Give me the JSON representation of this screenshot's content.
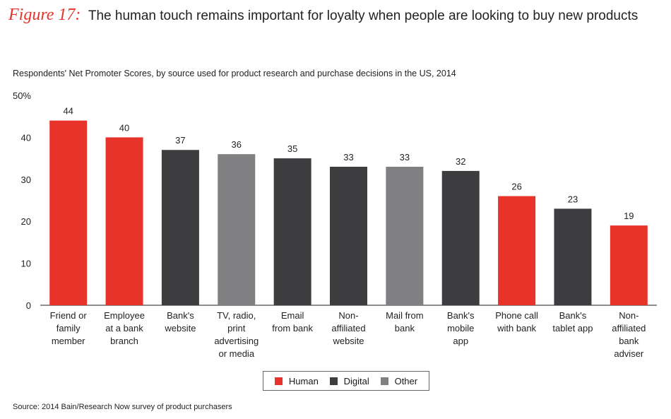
{
  "figure": {
    "label": "Figure 17:",
    "title": "The human touch remains important for loyalty when people are looking to buy new products"
  },
  "subtitle": "Respondents' Net Promoter Scores, by source used for product research and purchase decisions in the US, 2014",
  "source": "Source: 2014 Bain/Research Now survey of product purchasers",
  "colors": {
    "Human": "#e8332a",
    "Digital": "#3d3d3f",
    "Other": "#808082"
  },
  "legend": [
    {
      "label": "Human",
      "group": "Human"
    },
    {
      "label": "Digital",
      "group": "Digital"
    },
    {
      "label": "Other",
      "group": "Other"
    }
  ],
  "chart_data": {
    "type": "bar",
    "title": "Respondents' Net Promoter Scores, by source used for product research and purchase decisions in the US, 2014",
    "categories": [
      [
        "Friend or",
        "family",
        "member"
      ],
      [
        "Employee",
        "at a bank",
        "branch"
      ],
      [
        "Bank's",
        "website"
      ],
      [
        "TV, radio,",
        "print",
        "advertising",
        "or media"
      ],
      [
        "Email",
        "from bank"
      ],
      [
        "Non-",
        "affiliated",
        "website"
      ],
      [
        "Mail from",
        "bank"
      ],
      [
        "Bank's",
        "mobile",
        "app"
      ],
      [
        "Phone call",
        "with bank"
      ],
      [
        "Bank's",
        "tablet app"
      ],
      [
        "Non-",
        "affiliated",
        "bank",
        "adviser"
      ]
    ],
    "values": [
      44,
      40,
      37,
      36,
      35,
      33,
      33,
      32,
      26,
      23,
      19
    ],
    "groups": [
      "Human",
      "Human",
      "Digital",
      "Other",
      "Digital",
      "Digital",
      "Other",
      "Digital",
      "Human",
      "Digital",
      "Human"
    ],
    "y_ticks": [
      "0",
      "10",
      "20",
      "30",
      "40",
      "50%"
    ],
    "ylim": [
      0,
      50
    ],
    "grid": false,
    "legend_position": "bottom"
  }
}
